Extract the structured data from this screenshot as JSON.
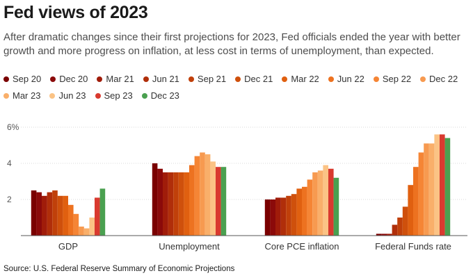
{
  "title": "Fed views of 2023",
  "subtitle": "After dramatic changes since their first projections for 2023, Fed officials ended the year with better growth and more progress on inflation, at less cost in terms of unemployment, than expected.",
  "source": "Source: U.S. Federal Reserve Summary of Economic Projections",
  "chart_data": {
    "type": "bar",
    "categories": [
      "GDP",
      "Unemployment",
      "Core PCE inflation",
      "Federal Funds rate"
    ],
    "ylim": [
      0,
      6
    ],
    "yticks": [
      2,
      4,
      6
    ],
    "ytick_labels": [
      "2",
      "4",
      "6%"
    ],
    "grid": true,
    "legend_position": "top",
    "series": [
      {
        "name": "Sep 20",
        "color": "#7a0000",
        "values": [
          2.5,
          4.0,
          2.0,
          0.1
        ]
      },
      {
        "name": "Dec 20",
        "color": "#8b0a0a",
        "values": [
          2.4,
          3.7,
          2.0,
          0.1
        ]
      },
      {
        "name": "Mar 21",
        "color": "#a01c0a",
        "values": [
          2.2,
          3.5,
          2.1,
          0.1
        ]
      },
      {
        "name": "Jun 21",
        "color": "#b02e0a",
        "values": [
          2.4,
          3.5,
          2.1,
          0.6
        ]
      },
      {
        "name": "Sep 21",
        "color": "#c0400a",
        "values": [
          2.5,
          3.5,
          2.2,
          1.0
        ]
      },
      {
        "name": "Dec 21",
        "color": "#cf500c",
        "values": [
          2.2,
          3.5,
          2.3,
          1.6
        ]
      },
      {
        "name": "Mar 22",
        "color": "#e06010",
        "values": [
          2.2,
          3.5,
          2.6,
          2.8
        ]
      },
      {
        "name": "Jun 22",
        "color": "#ed7220",
        "values": [
          1.7,
          3.9,
          2.7,
          3.8
        ]
      },
      {
        "name": "Sep 22",
        "color": "#f58535",
        "values": [
          1.2,
          4.4,
          3.1,
          4.6
        ]
      },
      {
        "name": "Dec 22",
        "color": "#f79a50",
        "values": [
          0.5,
          4.6,
          3.5,
          5.1
        ]
      },
      {
        "name": "Mar 23",
        "color": "#f9af6a",
        "values": [
          0.4,
          4.5,
          3.6,
          5.1
        ]
      },
      {
        "name": "Jun 23",
        "color": "#fbc385",
        "values": [
          1.0,
          4.1,
          3.9,
          5.6
        ]
      },
      {
        "name": "Sep 23",
        "color": "#d93a2f",
        "values": [
          2.1,
          3.8,
          3.7,
          5.6
        ]
      },
      {
        "name": "Dec 23",
        "color": "#4aa050",
        "values": [
          2.6,
          3.8,
          3.2,
          5.4
        ]
      }
    ]
  }
}
